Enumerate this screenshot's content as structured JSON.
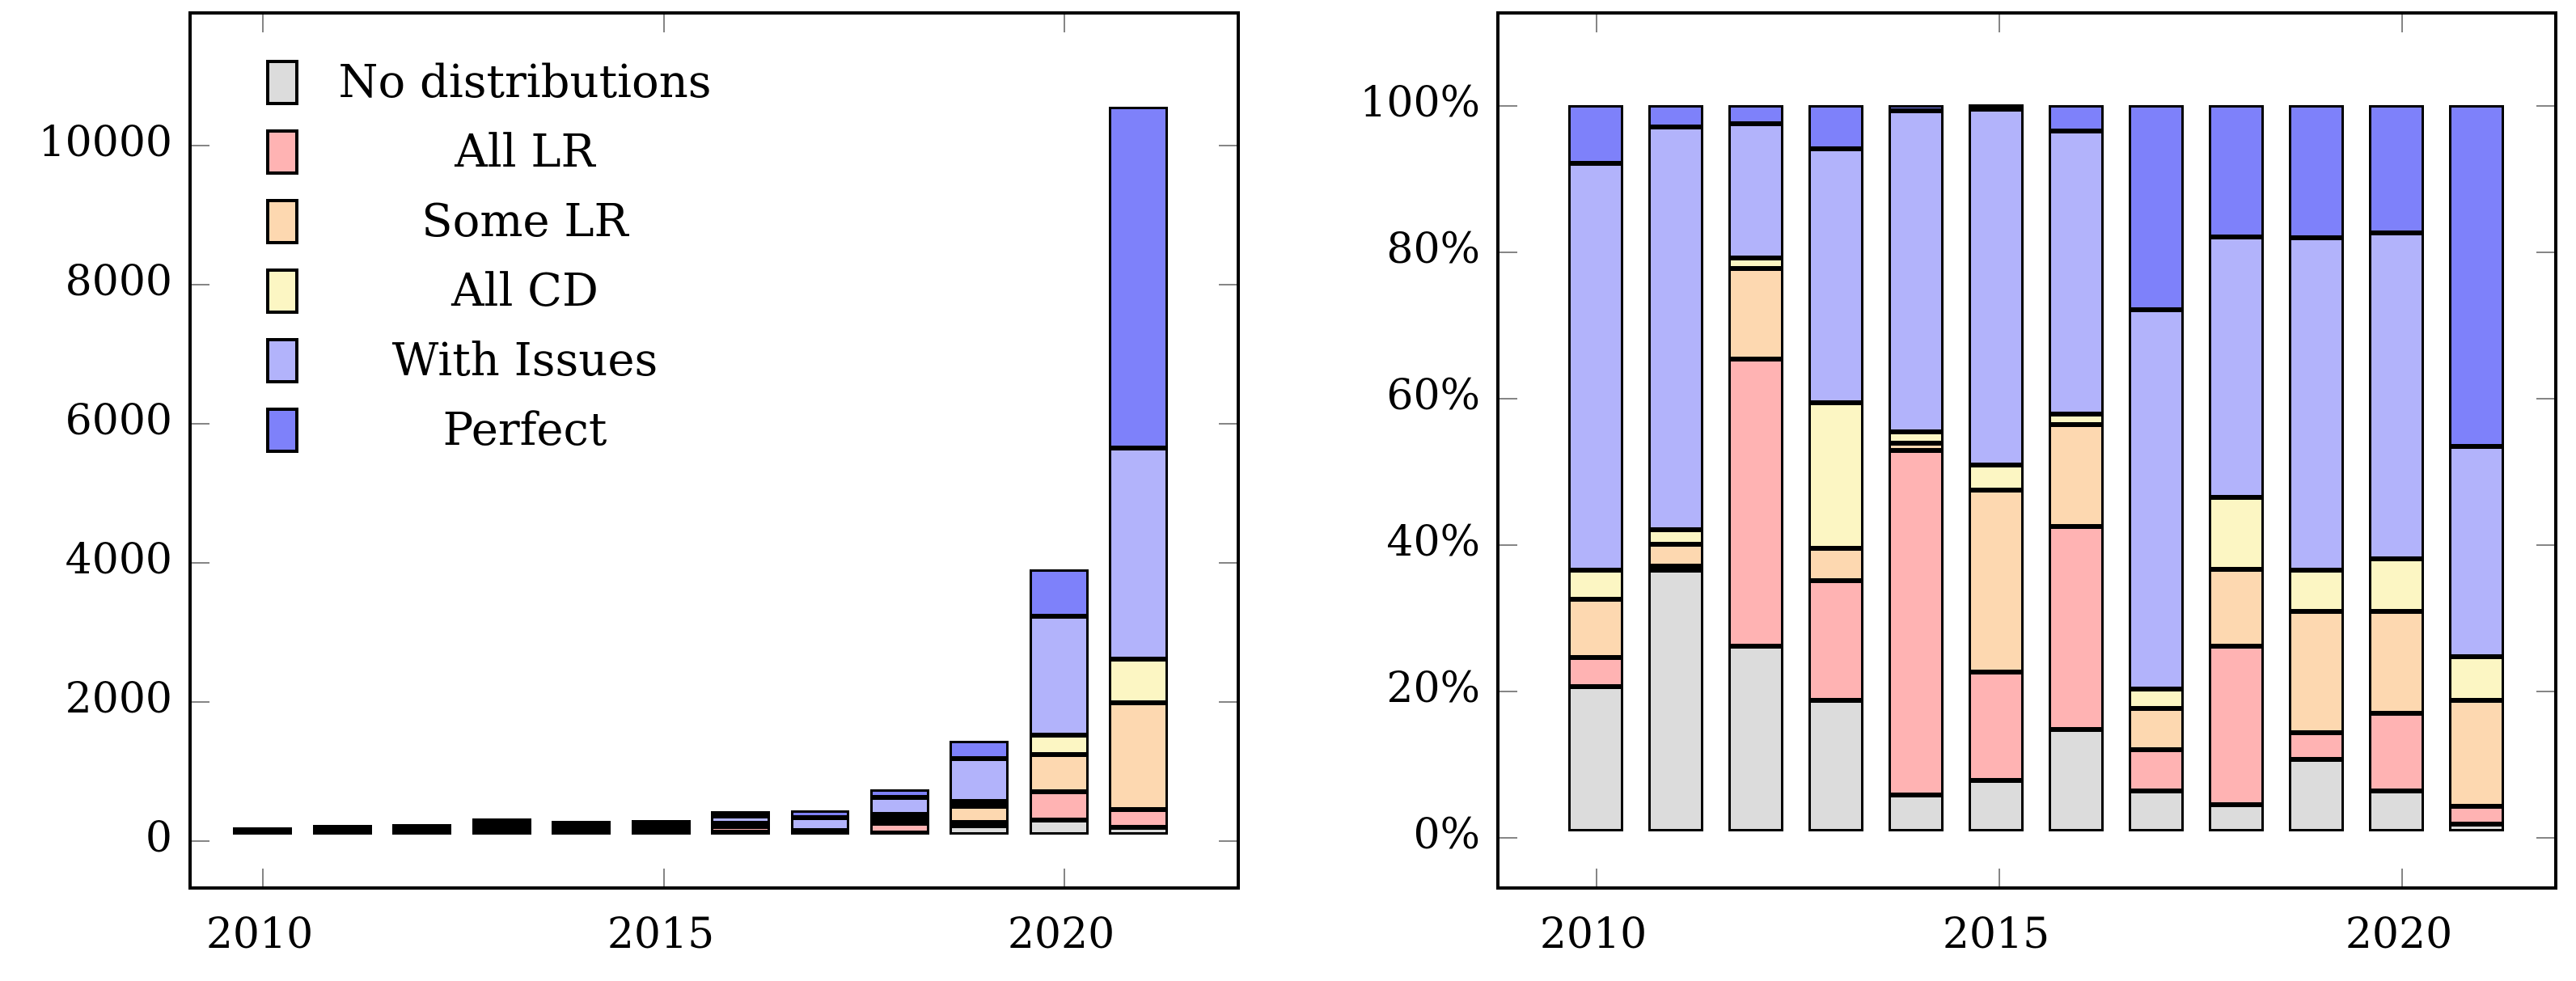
{
  "legend": {
    "items": [
      {
        "label": "No distributions"
      },
      {
        "label": "All LR"
      },
      {
        "label": "Some LR"
      },
      {
        "label": "All CD"
      },
      {
        "label": "With Issues"
      },
      {
        "label": "Perfect"
      }
    ]
  },
  "chart_data": [
    {
      "type": "bar",
      "stacked": true,
      "title": "",
      "xlabel": "",
      "ylabel": "",
      "categories": [
        "2010",
        "2011",
        "2012",
        "2013",
        "2014",
        "2015",
        "2016",
        "2017",
        "2018",
        "2019",
        "2020",
        "2021"
      ],
      "ylim": [
        0,
        10000
      ],
      "grid": false,
      "legend_position": "top-left-inside",
      "y_ticks": [
        {
          "label": "0",
          "value": 0
        },
        {
          "label": "2000",
          "value": 2000
        },
        {
          "label": "4000",
          "value": 4000
        },
        {
          "label": "6000",
          "value": 6000
        },
        {
          "label": "8000",
          "value": 8000
        },
        {
          "label": "10000",
          "value": 10000
        }
      ],
      "x_ticks": [
        {
          "label": "2010",
          "index": 0
        },
        {
          "label": "2015",
          "index": 5
        },
        {
          "label": "2020",
          "index": 10
        }
      ],
      "series": [
        {
          "name": "No distributions",
          "color": "#dcdcdc",
          "values": [
            9,
            27,
            23,
            32,
            7,
            10,
            41,
            20,
            25,
            134,
            215,
            105
          ]
        },
        {
          "name": "All LR",
          "color": "#ffb3b3",
          "values": [
            2,
            1,
            36,
            30,
            64,
            23,
            81,
            20,
            143,
            50,
            412,
            264
          ]
        },
        {
          "name": "Some LR",
          "color": "#fdd8b0",
          "values": [
            4,
            2,
            11,
            8,
            1,
            38,
            41,
            20,
            70,
            227,
            539,
            1540
          ]
        },
        {
          "name": "All CD",
          "color": "#fcf6c3",
          "values": [
            2,
            2,
            1,
            36,
            2,
            5,
            4,
            9,
            65,
            78,
            277,
            633
          ]
        },
        {
          "name": "With Issues",
          "color": "#b2b3fb",
          "values": [
            24,
            41,
            17,
            63,
            60,
            73,
            113,
            187,
            238,
            622,
            1729,
            3060
          ]
        },
        {
          "name": "Perfect",
          "color": "#7e81fa",
          "values": [
            4,
            2,
            2,
            11,
            1,
            1,
            10,
            99,
            119,
            249,
            678,
            4948
          ]
        }
      ]
    },
    {
      "type": "bar",
      "stacked": true,
      "percent": true,
      "title": "",
      "xlabel": "",
      "ylabel": "",
      "categories": [
        "2010",
        "2011",
        "2012",
        "2013",
        "2014",
        "2015",
        "2016",
        "2017",
        "2018",
        "2019",
        "2020",
        "2021"
      ],
      "ylim": [
        0,
        100
      ],
      "grid": false,
      "y_ticks": [
        {
          "label": "0%",
          "value": 0
        },
        {
          "label": "20%",
          "value": 20
        },
        {
          "label": "40%",
          "value": 40
        },
        {
          "label": "60%",
          "value": 60
        },
        {
          "label": "80%",
          "value": 80
        },
        {
          "label": "100%",
          "value": 100
        }
      ],
      "x_ticks": [
        {
          "label": "2010",
          "index": 0
        },
        {
          "label": "2015",
          "index": 5
        },
        {
          "label": "2020",
          "index": 10
        }
      ],
      "series": [
        {
          "name": "No distributions",
          "color": "#dcdcdc",
          "values": [
            20,
            36,
            25.5,
            18,
            5,
            7,
            14,
            5.6,
            3.7,
            9.9,
            5.6,
            1
          ]
        },
        {
          "name": "All LR",
          "color": "#ffb3b3",
          "values": [
            4,
            0.5,
            39.5,
            16.5,
            47.5,
            15,
            28,
            5.7,
            21.8,
            3.7,
            10.7,
            2.5
          ]
        },
        {
          "name": "Some LR",
          "color": "#fdd8b0",
          "values": [
            8,
            3,
            12.5,
            4.5,
            1,
            25,
            14,
            5.6,
            10.6,
            16.7,
            14,
            14.6
          ]
        },
        {
          "name": "All CD",
          "color": "#fcf6c3",
          "values": [
            4,
            2,
            1.5,
            20,
            1.5,
            3.5,
            1.5,
            2.7,
            9.9,
            5.7,
            7.2,
            6
          ]
        },
        {
          "name": "With Issues",
          "color": "#b2b3fb",
          "values": [
            56,
            55.5,
            18.5,
            35,
            44.2,
            49,
            39,
            52.2,
            35.9,
            45.7,
            44.9,
            28.9
          ]
        },
        {
          "name": "Perfect",
          "color": "#7e81fa",
          "values": [
            8,
            3,
            2.5,
            6,
            0.8,
            0.5,
            3.5,
            28.2,
            18.1,
            18.3,
            17.6,
            47
          ]
        }
      ]
    }
  ]
}
